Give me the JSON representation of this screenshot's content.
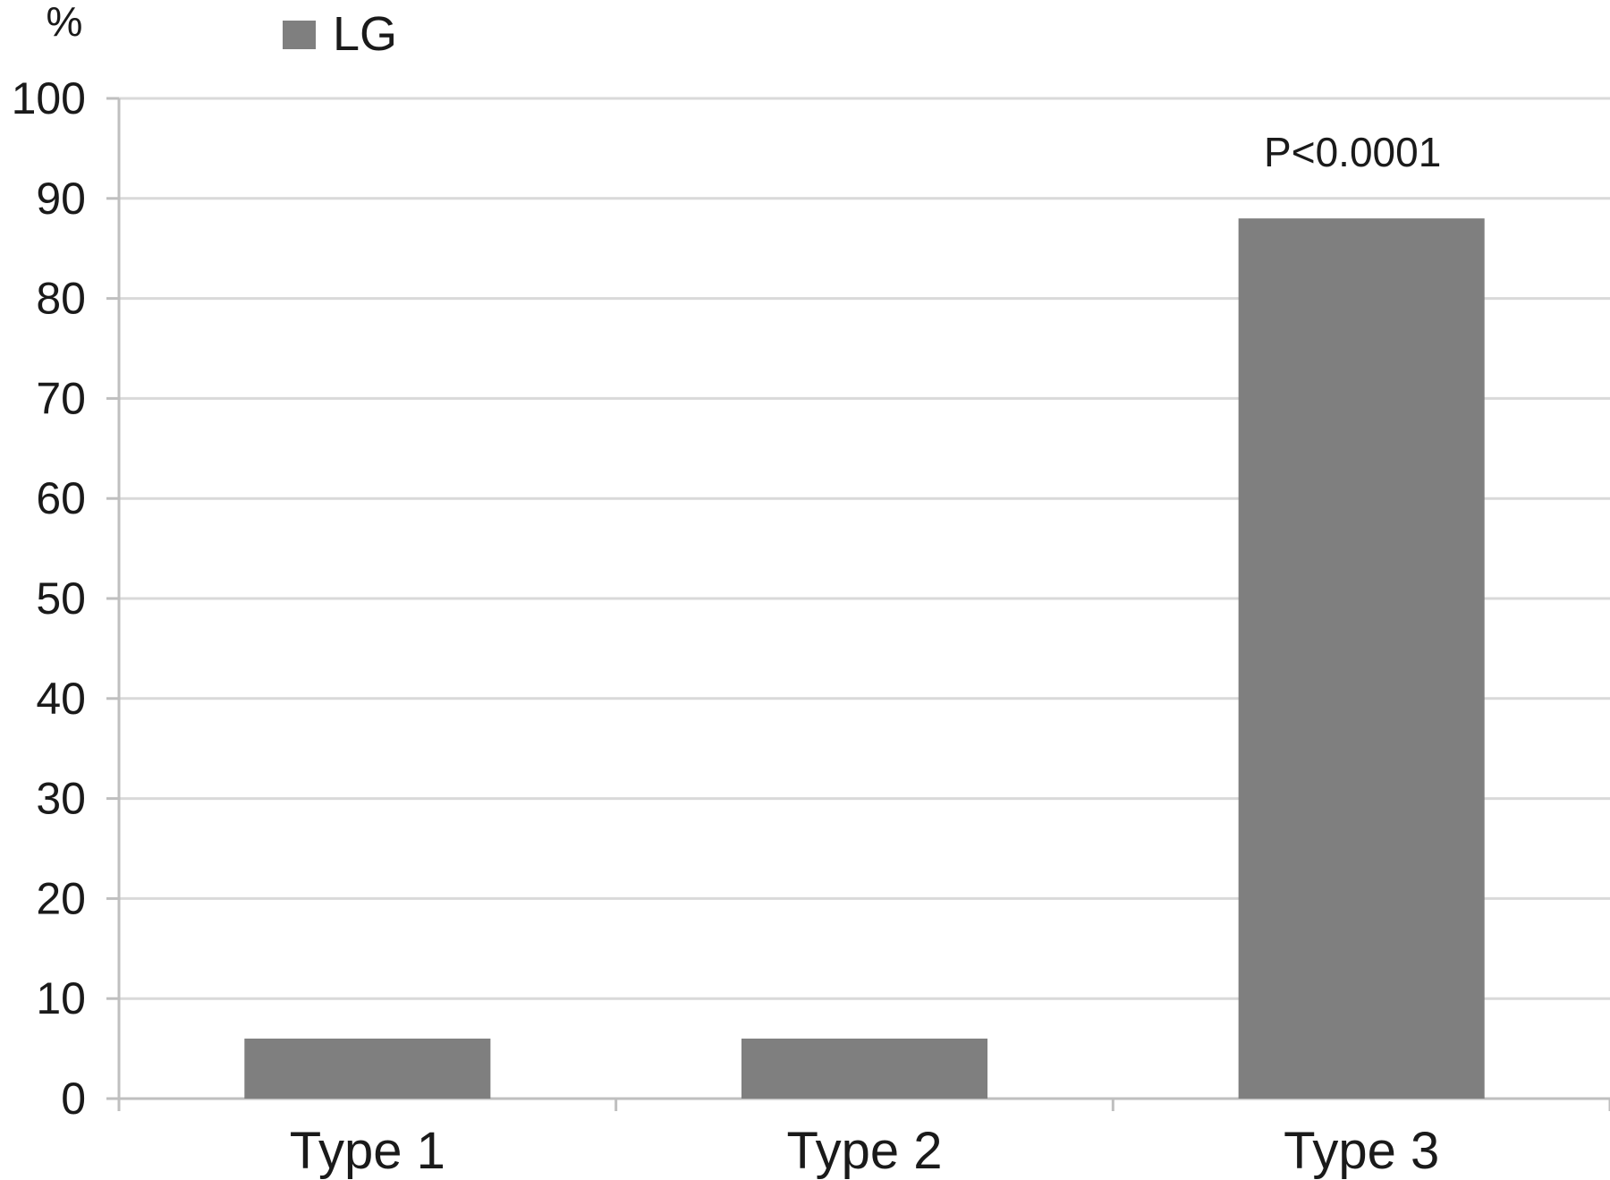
{
  "chart_data": {
    "type": "bar",
    "categories": [
      "Type 1",
      "Type 2",
      "Type 3"
    ],
    "series": [
      {
        "name": "LG",
        "values": [
          6,
          6,
          88
        ]
      }
    ],
    "ylabel": "%",
    "ylim": [
      0,
      100
    ],
    "yticks": [
      0,
      10,
      20,
      30,
      40,
      50,
      60,
      70,
      80,
      90,
      100
    ],
    "grid": true,
    "legend_position": "top-left",
    "annotations": [
      {
        "category": "Type 3",
        "text": "P<0.0001"
      }
    ],
    "colors": {
      "bar": "#7f7f7f",
      "grid": "#d9d9d9",
      "axis": "#bfbfbf"
    }
  }
}
